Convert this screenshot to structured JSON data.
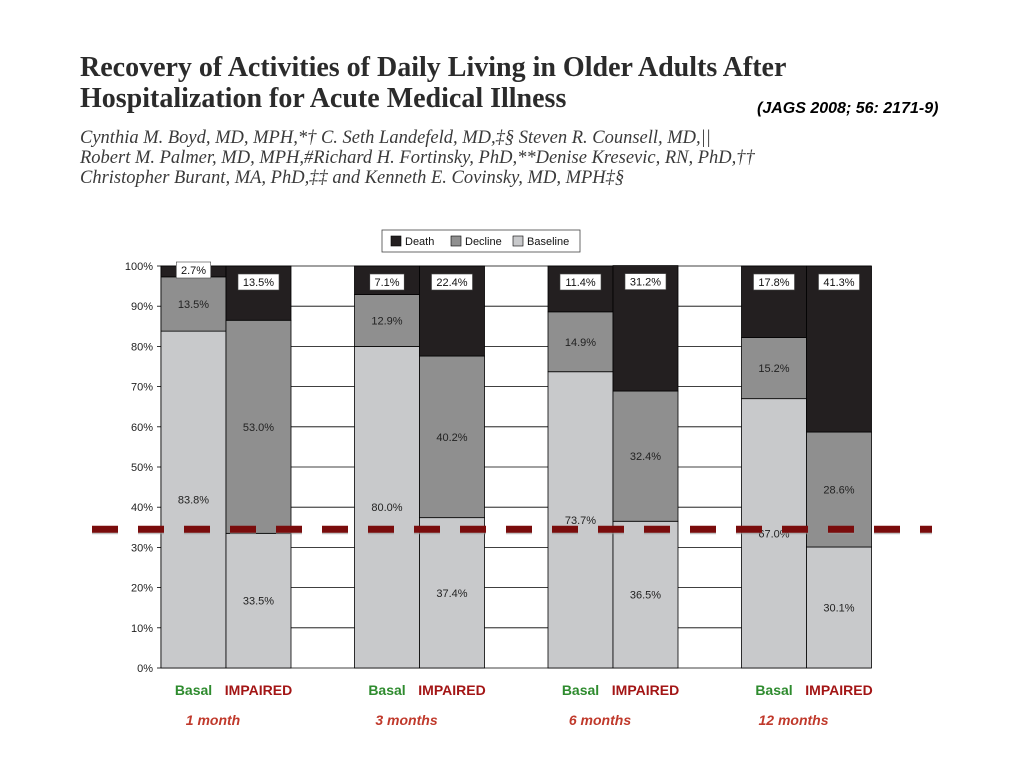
{
  "header": {
    "title_lines": [
      "Recovery of Activities of Daily Living in Older Adults After",
      "Hospitalization for Acute Medical Illness"
    ],
    "citation": "(JAGS 2008; 56: 2171-9)",
    "author_lines": [
      "Cynthia M. Boyd, MD, MPH,*† C. Seth Landefeld, MD,‡§ Steven R. Counsell, MD,||",
      "Robert M. Palmer, MD, MPH,#Richard H. Fortinsky, PhD,**Denise Kresevic, RN, PhD,††",
      "Christopher Burant, MA, PhD,‡‡ and Kenneth E. Covinsky, MD, MPH‡§"
    ]
  },
  "colors": {
    "death": "#231f20",
    "decline": "#8f8f8f",
    "baseline": "#c8c9cb",
    "basal_label": "#2e8b2e",
    "impaired_label": "#a31515",
    "period_label": "#c0392b",
    "threshold_line": "#7a0c0c"
  },
  "chart_data": {
    "type": "bar",
    "stacked": true,
    "ylim": [
      0,
      100
    ],
    "y_ticks": [
      "0%",
      "10%",
      "20%",
      "30%",
      "40%",
      "50%",
      "60%",
      "70%",
      "80%",
      "90%",
      "100%"
    ],
    "legend": {
      "position": "top",
      "entries": [
        "Death",
        "Decline",
        "Baseline"
      ]
    },
    "grid": true,
    "groups": [
      {
        "period": "1 month",
        "bars": [
          {
            "category": "Basal",
            "baseline": 83.8,
            "decline": 13.5,
            "death": 2.7,
            "labels": {
              "baseline": "83.8%",
              "decline": "13.5%",
              "death": "2.7%"
            }
          },
          {
            "category": "IMPAIRED",
            "baseline": 33.5,
            "decline": 53.0,
            "death": 13.5,
            "labels": {
              "baseline": "33.5%",
              "decline": "53.0%",
              "death": "13.5%"
            }
          }
        ]
      },
      {
        "period": "3 months",
        "bars": [
          {
            "category": "Basal",
            "baseline": 80.0,
            "decline": 12.9,
            "death": 7.1,
            "labels": {
              "baseline": "80.0%",
              "decline": "12.9%",
              "death": "7.1%"
            }
          },
          {
            "category": "IMPAIRED",
            "baseline": 37.4,
            "decline": 40.2,
            "death": 22.4,
            "labels": {
              "baseline": "37.4%",
              "decline": "40.2%",
              "death": "22.4%"
            }
          }
        ]
      },
      {
        "period": "6 months",
        "bars": [
          {
            "category": "Basal",
            "baseline": 73.7,
            "decline": 14.9,
            "death": 11.4,
            "labels": {
              "baseline": "73.7%",
              "decline": "14.9%",
              "death": "11.4%"
            }
          },
          {
            "category": "IMPAIRED",
            "baseline": 36.5,
            "decline": 32.4,
            "death": 31.2,
            "labels": {
              "baseline": "36.5%",
              "decline": "32.4%",
              "death": "31.2%"
            }
          }
        ]
      },
      {
        "period": "12 months",
        "bars": [
          {
            "category": "Basal",
            "baseline": 67.0,
            "decline": 15.2,
            "death": 17.8,
            "labels": {
              "baseline": "67.0%",
              "decline": "15.2%",
              "death": "17.8%"
            }
          },
          {
            "category": "IMPAIRED",
            "baseline": 30.1,
            "decline": 28.6,
            "death": 41.3,
            "labels": {
              "baseline": "30.1%",
              "decline": "28.6%",
              "death": "41.3%"
            }
          }
        ]
      }
    ],
    "reference_line": {
      "y": 34.5,
      "style": "dashed"
    }
  }
}
